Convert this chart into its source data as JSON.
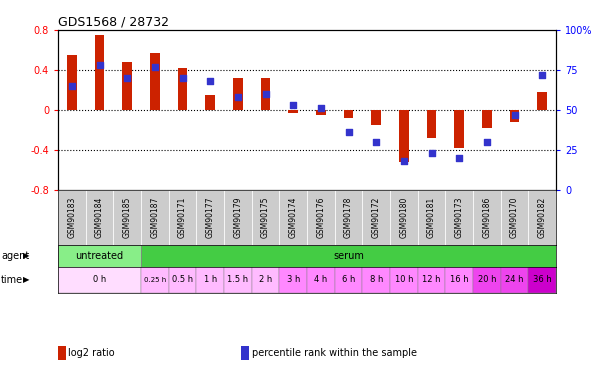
{
  "title": "GDS1568 / 28732",
  "samples": [
    "GSM90183",
    "GSM90184",
    "GSM90185",
    "GSM90187",
    "GSM90171",
    "GSM90177",
    "GSM90179",
    "GSM90175",
    "GSM90174",
    "GSM90176",
    "GSM90178",
    "GSM90172",
    "GSM90180",
    "GSM90181",
    "GSM90173",
    "GSM90186",
    "GSM90170",
    "GSM90182"
  ],
  "log2_ratio": [
    0.55,
    0.75,
    0.48,
    0.57,
    0.42,
    0.15,
    0.32,
    0.32,
    -0.03,
    -0.05,
    -0.08,
    -0.15,
    -0.52,
    -0.28,
    -0.38,
    -0.18,
    -0.12,
    0.18
  ],
  "percentile": [
    65,
    78,
    70,
    77,
    70,
    68,
    58,
    60,
    53,
    51,
    36,
    30,
    18,
    23,
    20,
    30,
    47,
    72
  ],
  "bar_color": "#cc2200",
  "dot_color": "#3333cc",
  "ylim_left": [
    -0.8,
    0.8
  ],
  "ylim_right": [
    0,
    100
  ],
  "yticks_left": [
    -0.8,
    -0.4,
    0.0,
    0.4,
    0.8
  ],
  "yticks_right": [
    0,
    25,
    50,
    75,
    100
  ],
  "ytick_labels_right": [
    "0",
    "25",
    "50",
    "75",
    "100%"
  ],
  "hlines": [
    -0.4,
    0.0,
    0.4
  ],
  "agent_untreated_cols": [
    0,
    1,
    2
  ],
  "agent_serum_cols": [
    3,
    4,
    5,
    6,
    7,
    8,
    9,
    10,
    11,
    12,
    13,
    14,
    15,
    16,
    17
  ],
  "agent_untreated_color": "#88ee88",
  "agent_serum_color": "#44cc44",
  "sample_bg_color": "#cccccc",
  "time_assignments": [
    [
      0,
      2,
      "0 h",
      "#ffddff"
    ],
    [
      3,
      3,
      "0.25 h",
      "#ffbbff"
    ],
    [
      4,
      4,
      "0.5 h",
      "#ffbbff"
    ],
    [
      5,
      5,
      "1 h",
      "#ffbbff"
    ],
    [
      6,
      6,
      "1.5 h",
      "#ffbbff"
    ],
    [
      7,
      7,
      "2 h",
      "#ffbbff"
    ],
    [
      8,
      8,
      "3 h",
      "#ff88ff"
    ],
    [
      9,
      9,
      "4 h",
      "#ff88ff"
    ],
    [
      10,
      10,
      "6 h",
      "#ff88ff"
    ],
    [
      11,
      11,
      "8 h",
      "#ff88ff"
    ],
    [
      12,
      12,
      "10 h",
      "#ff88ff"
    ],
    [
      13,
      13,
      "12 h",
      "#ff88ff"
    ],
    [
      14,
      14,
      "16 h",
      "#ff88ff"
    ],
    [
      15,
      15,
      "20 h",
      "#ee44ee"
    ],
    [
      16,
      16,
      "24 h",
      "#ee44ee"
    ],
    [
      17,
      17,
      "36 h",
      "#cc00cc"
    ]
  ],
  "legend_items": [
    {
      "color": "#cc2200",
      "label": "log2 ratio"
    },
    {
      "color": "#3333cc",
      "label": "percentile rank within the sample"
    }
  ]
}
